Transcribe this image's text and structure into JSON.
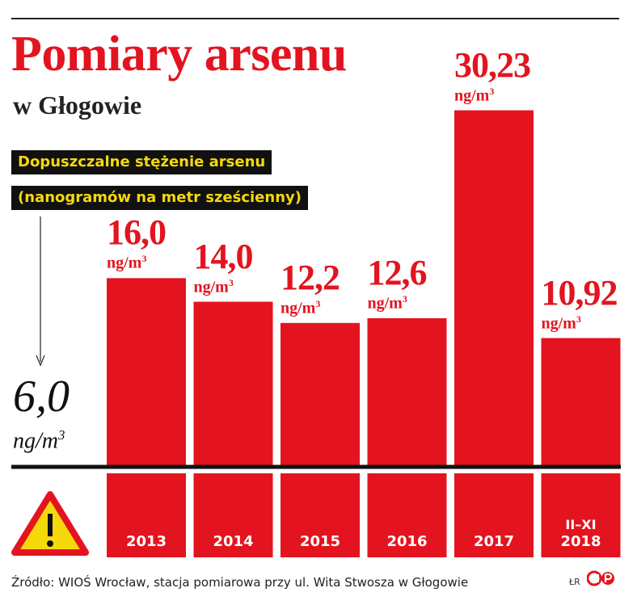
{
  "title": "Pomiary arsenu",
  "subtitle": "w Głogowie",
  "limit": {
    "label_line1": "Dopuszczalne stężenie arsenu",
    "label_line2": "(nanogramów na metr sześcienny)",
    "value_text": "6,0",
    "unit_text": "ng/m",
    "unit_exp": "3"
  },
  "chart_data": {
    "type": "bar",
    "title": "Pomiary arsenu",
    "subtitle": "w Głogowie",
    "categories": [
      "2013",
      "2014",
      "2015",
      "2016",
      "2017",
      "II–XI 2018"
    ],
    "values": [
      16.0,
      14.0,
      12.2,
      12.6,
      30.23,
      10.92
    ],
    "value_labels": [
      "16,0",
      "14,0",
      "12,2",
      "12,6",
      "30,23",
      "10,92"
    ],
    "unit": "ng/m",
    "unit_exp": "3",
    "year_labels": [
      {
        "sub": "",
        "main": "2013"
      },
      {
        "sub": "",
        "main": "2014"
      },
      {
        "sub": "",
        "main": "2015"
      },
      {
        "sub": "",
        "main": "2016"
      },
      {
        "sub": "",
        "main": "2017"
      },
      {
        "sub": "II–XI",
        "main": "2018"
      }
    ],
    "reference_line": {
      "value": 6.0,
      "label": "6,0"
    },
    "ylim": [
      0,
      31.5
    ],
    "grid": false,
    "legend": "none"
  },
  "colors": {
    "bar": "#e3141f",
    "title": "#e3141f",
    "label_bg": "#111111",
    "label_text": "#f5d90a",
    "baseline": "#111111",
    "warning_fill": "#f5d90a",
    "warning_border": "#e3141f"
  },
  "icons": {
    "warning": "warning-triangle-icon",
    "arrow": "arrow-down-icon",
    "logo": "cp-logo-icon"
  },
  "footer": {
    "source": "Źródło: WIOŚ Wrocław, stacja pomiarowa przy ul. Wita Stwosza w Głogowie",
    "author": "ŁR"
  }
}
